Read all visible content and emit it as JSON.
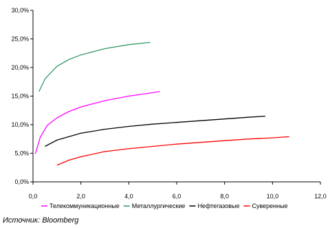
{
  "chart_data": {
    "type": "line",
    "xlim": [
      0,
      12
    ],
    "ylim": [
      0,
      30
    ],
    "x_ticks": [
      "0,0",
      "2,0",
      "4,0",
      "6,0",
      "8,0",
      "10,0",
      "12,0"
    ],
    "y_ticks": [
      "0,0%",
      "5,0%",
      "10,0%",
      "15,0%",
      "20,0%",
      "25,0%",
      "30,0%"
    ],
    "grid": false,
    "legend_position": "bottom",
    "series": [
      {
        "name": "Телекоммуникационные",
        "color": "#ff00ff",
        "points": [
          [
            0.1,
            4.9
          ],
          [
            0.3,
            7.8
          ],
          [
            0.6,
            9.9
          ],
          [
            1.0,
            11.2
          ],
          [
            1.5,
            12.3
          ],
          [
            2.0,
            13.1
          ],
          [
            3.0,
            14.2
          ],
          [
            4.0,
            15.0
          ],
          [
            5.0,
            15.6
          ],
          [
            5.3,
            15.8
          ]
        ]
      },
      {
        "name": "Металлургические",
        "color": "#339966",
        "points": [
          [
            0.25,
            15.8
          ],
          [
            0.5,
            18.0
          ],
          [
            1.0,
            20.2
          ],
          [
            1.5,
            21.4
          ],
          [
            2.0,
            22.2
          ],
          [
            3.0,
            23.3
          ],
          [
            4.0,
            24.0
          ],
          [
            4.9,
            24.4
          ]
        ]
      },
      {
        "name": "Нефтегазовые",
        "color": "#000000",
        "points": [
          [
            0.5,
            6.2
          ],
          [
            1.0,
            7.3
          ],
          [
            2.0,
            8.5
          ],
          [
            3.0,
            9.2
          ],
          [
            4.0,
            9.7
          ],
          [
            5.0,
            10.1
          ],
          [
            6.0,
            10.4
          ],
          [
            7.0,
            10.7
          ],
          [
            8.0,
            11.0
          ],
          [
            9.0,
            11.3
          ],
          [
            9.7,
            11.5
          ]
        ]
      },
      {
        "name": "Суверенные",
        "color": "#ff0000",
        "points": [
          [
            1.0,
            2.9
          ],
          [
            1.5,
            3.8
          ],
          [
            2.0,
            4.4
          ],
          [
            3.0,
            5.3
          ],
          [
            4.0,
            5.8
          ],
          [
            5.0,
            6.2
          ],
          [
            6.0,
            6.6
          ],
          [
            7.0,
            6.9
          ],
          [
            8.0,
            7.2
          ],
          [
            9.0,
            7.5
          ],
          [
            10.0,
            7.7
          ],
          [
            10.7,
            7.9
          ]
        ]
      }
    ]
  },
  "source_text": "Источник: Bloomberg"
}
